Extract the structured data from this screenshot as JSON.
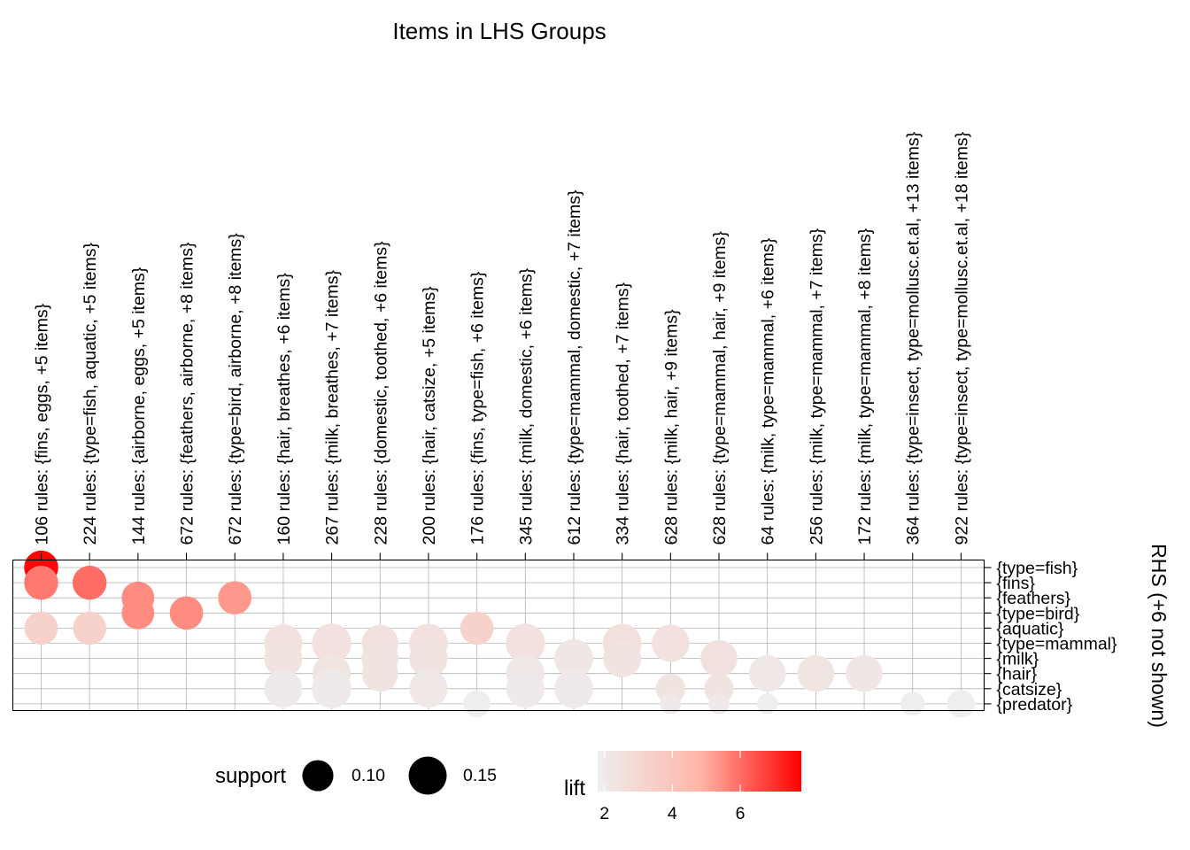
{
  "chart_data": {
    "type": "scatter",
    "title": "Items in LHS Groups",
    "right_axis_title": "RHS (+6 not shown)",
    "columns": [
      "106 rules: {fins, eggs, +5 items}",
      "224 rules: {type=fish, aquatic, +5 items}",
      "144 rules: {airborne, eggs, +5 items}",
      "672 rules: {feathers, airborne, +8 items}",
      "672 rules: {type=bird, airborne, +8 items}",
      "160 rules: {hair, breathes, +6 items}",
      "267 rules: {milk, breathes, +7 items}",
      "228 rules: {domestic, toothed, +6 items}",
      "200 rules: {hair, catsize, +5 items}",
      "176 rules: {fins, type=fish, +6 items}",
      "345 rules: {milk, domestic, +6 items}",
      "612 rules: {type=mammal, domestic, +7 items}",
      "334 rules: {hair, toothed, +7 items}",
      "628 rules: {milk, hair, +9 items}",
      "628 rules: {type=mammal, hair, +9 items}",
      "64 rules: {milk, type=mammal, +6 items}",
      "256 rules: {milk, type=mammal, +7 items}",
      "172 rules: {milk, type=mammal, +8 items}",
      "364 rules: {type=insect, type=mollusc.et.al, +13 items}",
      "922 rules: {type=insect, type=mollusc.et.al, +18 items}"
    ],
    "rows": [
      "{type=fish}",
      "{fins}",
      "{feathers}",
      "{type=bird}",
      "{aquatic}",
      "{type=mammal}",
      "{milk}",
      "{hair}",
      "{catsize}",
      "{predator}"
    ],
    "points": [
      {
        "col": 0,
        "row": 0,
        "support": 0.12,
        "lift": 7.7
      },
      {
        "col": 0,
        "row": 1,
        "support": 0.12,
        "lift": 5.8
      },
      {
        "col": 0,
        "row": 4,
        "support": 0.115,
        "lift": 3.3
      },
      {
        "col": 1,
        "row": 1,
        "support": 0.12,
        "lift": 6.0
      },
      {
        "col": 1,
        "row": 4,
        "support": 0.115,
        "lift": 3.3
      },
      {
        "col": 2,
        "row": 2,
        "support": 0.11,
        "lift": 5.5
      },
      {
        "col": 2,
        "row": 3,
        "support": 0.11,
        "lift": 5.5
      },
      {
        "col": 3,
        "row": 3,
        "support": 0.115,
        "lift": 5.5
      },
      {
        "col": 4,
        "row": 2,
        "support": 0.115,
        "lift": 5.3
      },
      {
        "col": 5,
        "row": 5,
        "support": 0.15,
        "lift": 2.5
      },
      {
        "col": 5,
        "row": 6,
        "support": 0.15,
        "lift": 2.4
      },
      {
        "col": 5,
        "row": 8,
        "support": 0.15,
        "lift": 2.0
      },
      {
        "col": 6,
        "row": 5,
        "support": 0.16,
        "lift": 2.5
      },
      {
        "col": 6,
        "row": 7,
        "support": 0.15,
        "lift": 2.3
      },
      {
        "col": 6,
        "row": 8,
        "support": 0.16,
        "lift": 2.0
      },
      {
        "col": 7,
        "row": 5,
        "support": 0.14,
        "lift": 2.5
      },
      {
        "col": 7,
        "row": 6,
        "support": 0.14,
        "lift": 2.4
      },
      {
        "col": 7,
        "row": 7,
        "support": 0.135,
        "lift": 2.4
      },
      {
        "col": 8,
        "row": 5,
        "support": 0.155,
        "lift": 2.5
      },
      {
        "col": 8,
        "row": 6,
        "support": 0.15,
        "lift": 2.4
      },
      {
        "col": 8,
        "row": 8,
        "support": 0.15,
        "lift": 2.1
      },
      {
        "col": 9,
        "row": 4,
        "support": 0.115,
        "lift": 3.3
      },
      {
        "col": 9,
        "row": 9,
        "support": 0.075,
        "lift": 1.7
      },
      {
        "col": 10,
        "row": 5,
        "support": 0.16,
        "lift": 2.5
      },
      {
        "col": 10,
        "row": 7,
        "support": 0.15,
        "lift": 2.1
      },
      {
        "col": 10,
        "row": 8,
        "support": 0.15,
        "lift": 2.0
      },
      {
        "col": 11,
        "row": 6,
        "support": 0.155,
        "lift": 2.2
      },
      {
        "col": 11,
        "row": 8,
        "support": 0.155,
        "lift": 2.0
      },
      {
        "col": 12,
        "row": 5,
        "support": 0.155,
        "lift": 2.6
      },
      {
        "col": 12,
        "row": 6,
        "support": 0.15,
        "lift": 2.4
      },
      {
        "col": 13,
        "row": 5,
        "support": 0.145,
        "lift": 2.5
      },
      {
        "col": 13,
        "row": 8,
        "support": 0.09,
        "lift": 2.4
      },
      {
        "col": 13,
        "row": 9,
        "support": 0.045,
        "lift": 2.0
      },
      {
        "col": 14,
        "row": 6,
        "support": 0.14,
        "lift": 2.5
      },
      {
        "col": 14,
        "row": 8,
        "support": 0.09,
        "lift": 2.4
      },
      {
        "col": 14,
        "row": 9,
        "support": 0.045,
        "lift": 2.0
      },
      {
        "col": 15,
        "row": 7,
        "support": 0.14,
        "lift": 2.1
      },
      {
        "col": 15,
        "row": 9,
        "support": 0.045,
        "lift": 1.8
      },
      {
        "col": 16,
        "row": 7,
        "support": 0.14,
        "lift": 2.3
      },
      {
        "col": 17,
        "row": 7,
        "support": 0.14,
        "lift": 2.2
      },
      {
        "col": 18,
        "row": 9,
        "support": 0.06,
        "lift": 1.8
      },
      {
        "col": 19,
        "row": 9,
        "support": 0.08,
        "lift": 1.8
      }
    ],
    "size_legend": {
      "title": "support",
      "values": [
        0.1,
        0.15
      ],
      "labels": [
        "0.10",
        "0.15"
      ]
    },
    "color_legend": {
      "title": "lift",
      "ticks": [
        2,
        4,
        6
      ],
      "range": [
        1.8,
        7.8
      ],
      "colors": [
        "#eeeeee",
        "#ff0000"
      ]
    },
    "grid": true
  }
}
